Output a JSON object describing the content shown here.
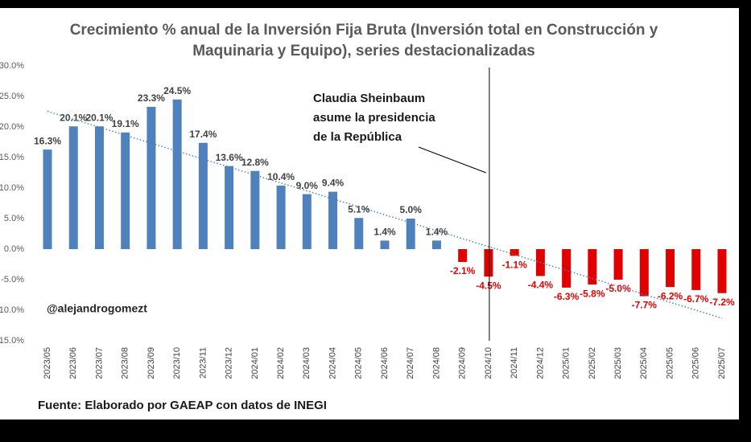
{
  "chart_data": {
    "type": "bar",
    "title": [
      "Crecimiento % anual de la Inversión Fija Bruta (Inversión total en Construcción y",
      "Maquinaria y Equipo), series destacionalizadas"
    ],
    "categories": [
      "2023/05",
      "2023/06",
      "2023/07",
      "2023/08",
      "2023/09",
      "2023/10",
      "2023/11",
      "2023/12",
      "2024/01",
      "2024/02",
      "2024/03",
      "2024/04",
      "2024/05",
      "2024/06",
      "2024/07",
      "2024/08",
      "2024/09",
      "2024/10",
      "2024/11",
      "2024/12",
      "2025/01",
      "2025/02",
      "2025/03",
      "2025/04",
      "2025/05",
      "2025/06",
      "2025/07"
    ],
    "values": [
      16.3,
      20.1,
      20.1,
      19.1,
      23.3,
      24.5,
      17.4,
      13.6,
      12.8,
      10.4,
      9.0,
      9.4,
      5.1,
      1.4,
      5.0,
      1.4,
      -2.1,
      -4.5,
      -1.1,
      -4.4,
      -6.3,
      -5.8,
      -5.0,
      -7.7,
      -6.2,
      -6.7,
      -7.2
    ],
    "value_labels": [
      "16.3%",
      "20.1%",
      "20.1%",
      "19.1%",
      "23.3%",
      "24.5%",
      "17.4%",
      "13.6%",
      "12.8%",
      "10.4%",
      "9.0%",
      "9.4%",
      "5.1%",
      "1.4%",
      "5.0%",
      "1.4%",
      "-2.1%",
      "-4.5%",
      "-1.1%",
      "-4.4%",
      "-6.3%",
      "-5.8%",
      "-5.0%",
      "-7.7%",
      "-6.2%",
      "-6.7%",
      "-7.2%"
    ],
    "color": "#4f81bd",
    "negative_color": "#e00000",
    "ylim": [
      -15,
      30
    ],
    "yticks": [
      {
        "value": 30,
        "label": "30.0%"
      },
      {
        "value": 25,
        "label": "25.0%"
      },
      {
        "value": 20,
        "label": "20.0%"
      },
      {
        "value": 15,
        "label": "15.0%"
      },
      {
        "value": 10,
        "label": "10.0%"
      },
      {
        "value": 5,
        "label": "5.0%"
      },
      {
        "value": 0,
        "label": "0.0%"
      },
      {
        "value": -5,
        "label": "-5.0%"
      },
      {
        "value": -10,
        "label": "-10.0%"
      },
      {
        "value": -15,
        "label": "-15.0%"
      }
    ],
    "grid": false,
    "trendline": true,
    "annotation": {
      "at": "2024/10",
      "lines": [
        "Claudia Sheinbaum",
        "asume la presidencia",
        "de la República"
      ]
    },
    "watermark": "@alejandrogomezt",
    "source": "Fuente: Elaborado por GAEAP con datos de INEGI"
  }
}
